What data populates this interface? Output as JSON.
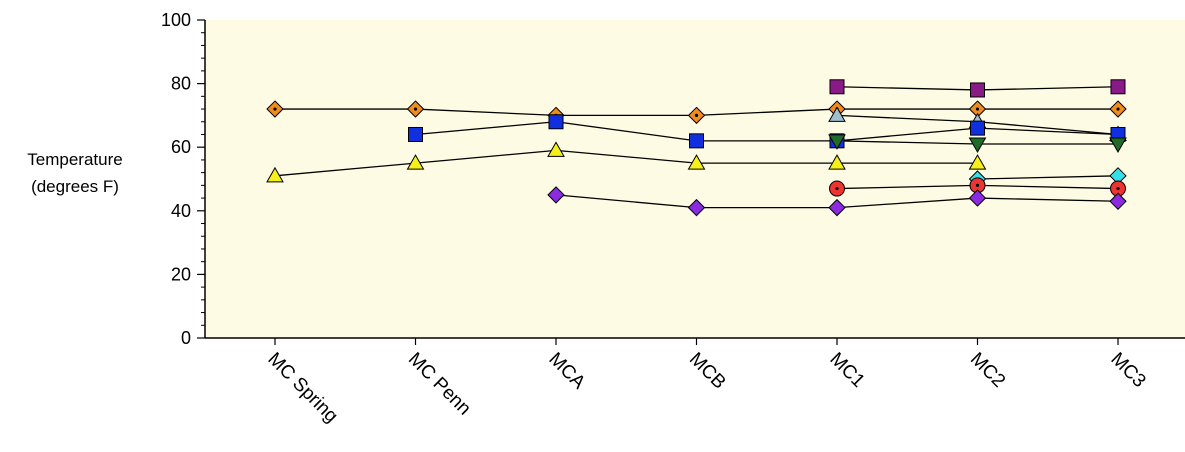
{
  "chart_data": {
    "type": "line",
    "title": "",
    "xlabel": "",
    "ylabel_line1": "Temperature",
    "ylabel_line2": "(degrees F)",
    "categories": [
      "MC Spring",
      "MC Penn",
      "MCA",
      "MCB",
      "MC1",
      "MC2",
      "MC3"
    ],
    "ylim": [
      0,
      100
    ],
    "yticks": [
      0,
      20,
      40,
      60,
      80,
      100
    ],
    "plot_background": "#fdfbe3",
    "grid": false,
    "legend": "none",
    "series": [
      {
        "marker": "square",
        "color": "#8b1a89",
        "values": [
          null,
          null,
          null,
          null,
          79,
          78,
          79
        ]
      },
      {
        "marker": "diamond-dot",
        "color": "#f08c1c",
        "values": [
          72,
          72,
          70,
          70,
          72,
          72,
          72
        ]
      },
      {
        "marker": "triangle-up",
        "color": "#9fbfcf",
        "values": [
          null,
          null,
          null,
          null,
          70,
          68,
          64
        ]
      },
      {
        "marker": "square",
        "color": "#1030e0",
        "values": [
          null,
          64,
          68,
          62,
          62,
          66,
          64
        ]
      },
      {
        "marker": "triangle-down",
        "color": "#1e6b2a",
        "values": [
          null,
          null,
          null,
          null,
          62,
          61,
          61
        ]
      },
      {
        "marker": "triangle-up",
        "color": "#f7ef1a",
        "values": [
          51,
          55,
          59,
          55,
          55,
          55,
          null
        ]
      },
      {
        "marker": "diamond",
        "color": "#33e0e8",
        "values": [
          null,
          null,
          null,
          null,
          null,
          50,
          51
        ]
      },
      {
        "marker": "circle-dot",
        "color": "#ee3333",
        "values": [
          null,
          null,
          null,
          null,
          47,
          48,
          47
        ]
      },
      {
        "marker": "diamond",
        "color": "#8a2be2",
        "values": [
          null,
          null,
          45,
          41,
          41,
          44,
          43
        ]
      }
    ]
  }
}
